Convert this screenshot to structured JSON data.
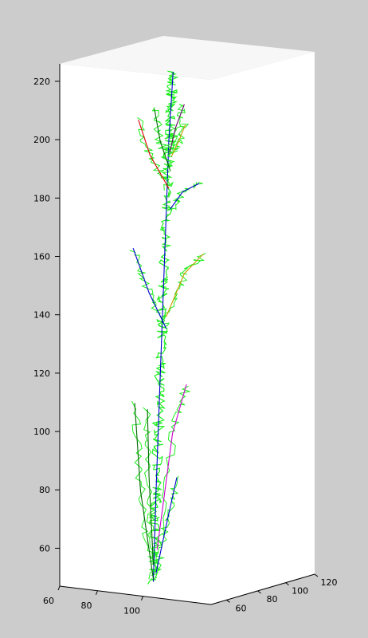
{
  "chart_data": {
    "type": "line3d",
    "title": "",
    "xlabel": "",
    "ylabel": "",
    "zlabel": "",
    "grid": false,
    "background_color": "#cccccc",
    "axes_color": "#ffffff",
    "mesh_color": "#22ee22",
    "x_ticks": [
      "60",
      "80",
      "100"
    ],
    "y_ticks": [
      "60",
      "80",
      "100",
      "120"
    ],
    "z_ticks": [
      "60",
      "80",
      "100",
      "120",
      "140",
      "160",
      "180",
      "200",
      "220"
    ],
    "zlim": [
      47,
      226
    ],
    "series": [
      {
        "color": "#0000cc",
        "role": "main stem",
        "points": [
          [
            90,
            90,
            49
          ],
          [
            91,
            91,
            80
          ],
          [
            93,
            92,
            120
          ],
          [
            95,
            93,
            160
          ],
          [
            97,
            94,
            200
          ],
          [
            99,
            95,
            224
          ]
        ]
      },
      {
        "color": "#dd0000",
        "role": "branch",
        "points": [
          [
            97,
            94,
            184
          ],
          [
            88,
            90,
            195
          ],
          [
            82,
            88,
            207
          ]
        ]
      },
      {
        "color": "#006600",
        "role": "branch",
        "points": [
          [
            98,
            94,
            190
          ],
          [
            93,
            92,
            200
          ],
          [
            90,
            91,
            211
          ]
        ]
      },
      {
        "color": "#660066",
        "role": "branch",
        "points": [
          [
            97,
            94,
            195
          ],
          [
            100,
            96,
            205
          ],
          [
            104,
            98,
            213
          ]
        ]
      },
      {
        "color": "#cc9900",
        "role": "branch",
        "points": [
          [
            98,
            95,
            195
          ],
          [
            101,
            97,
            200
          ],
          [
            104,
            99,
            206
          ]
        ]
      },
      {
        "color": "#0000cc",
        "role": "branch",
        "points": [
          [
            98,
            94,
            177
          ],
          [
            103,
            98,
            183
          ],
          [
            110,
            103,
            186
          ]
        ]
      },
      {
        "color": "#0000cc",
        "role": "branch",
        "points": [
          [
            96,
            93,
            136
          ],
          [
            88,
            89,
            148
          ],
          [
            80,
            86,
            163
          ]
        ]
      },
      {
        "color": "#cc9900",
        "role": "branch",
        "points": [
          [
            96,
            93,
            140
          ],
          [
            104,
            98,
            155
          ],
          [
            112,
            104,
            162
          ]
        ]
      },
      {
        "color": "#006600",
        "role": "branch",
        "points": [
          [
            90,
            90,
            50
          ],
          [
            84,
            87,
            80
          ],
          [
            81,
            86,
            110
          ]
        ]
      },
      {
        "color": "#006600",
        "role": "branch",
        "points": [
          [
            90,
            90,
            55
          ],
          [
            88,
            89,
            85
          ],
          [
            87,
            89,
            108
          ]
        ]
      },
      {
        "color": "#cc00cc",
        "role": "branch",
        "points": [
          [
            91,
            92,
            60
          ],
          [
            98,
            96,
            100
          ],
          [
            104,
            100,
            117
          ]
        ]
      },
      {
        "color": "#0000cc",
        "role": "branch",
        "points": [
          [
            91,
            91,
            52
          ],
          [
            96,
            94,
            70
          ],
          [
            100,
            97,
            85
          ]
        ]
      }
    ]
  }
}
